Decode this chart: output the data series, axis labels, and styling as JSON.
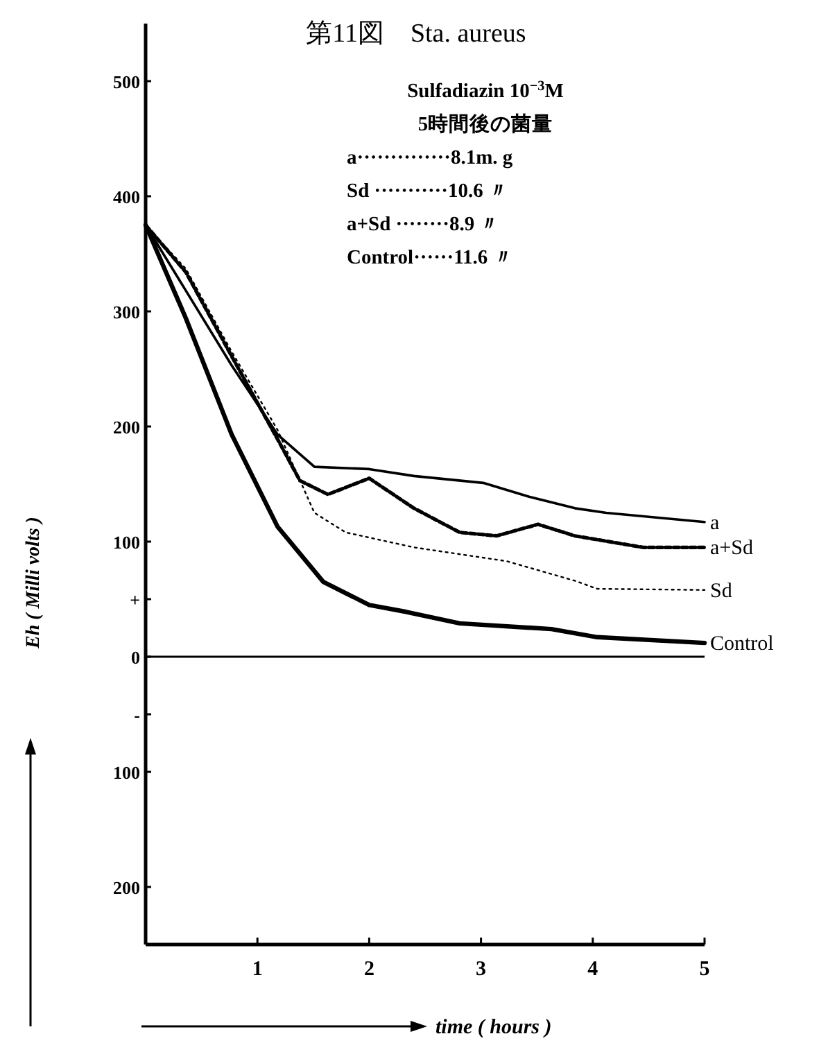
{
  "chart_data": {
    "type": "line",
    "title": "第11図　Sta. aureus",
    "xlabel": "time ( hours )",
    "ylabel": "Eh ( Milli volts )",
    "annotations": [
      "Sulfadiazin 10$^{−3}$M",
      "5時間後の菌量",
      "a··············8.1m. g",
      "Sd ···········10.6 〃",
      "a+Sd ········8.9 〃",
      "Control······11.6 〃"
    ],
    "xlim": [
      0,
      5
    ],
    "xticks": [
      1,
      2,
      3,
      4,
      5
    ],
    "ylim": [
      -250,
      550
    ],
    "yticks": [
      500,
      400,
      300,
      200,
      100,
      {
        "value": 50,
        "label": "+"
      },
      0,
      {
        "value": -50,
        "label": "-"
      },
      {
        "value": -100,
        "label": "100"
      },
      {
        "value": -200,
        "label": "200"
      }
    ],
    "ref_lines": [
      {
        "axis": "y",
        "value": 0
      }
    ],
    "grid": false,
    "series": [
      {
        "name": "a",
        "color": "#000000",
        "line_style": "solid",
        "x": [
          0,
          0.36,
          0.77,
          1.18,
          1.51,
          2.0,
          2.4,
          3.02,
          3.43,
          3.84,
          4.12,
          5
        ],
        "values": [
          375,
          318,
          253,
          193,
          165,
          163,
          157,
          151,
          139,
          129,
          125,
          117
        ]
      },
      {
        "name": "a+Sd",
        "color": "#000000",
        "line_style": "dashed",
        "x": [
          0,
          0.36,
          0.77,
          1.18,
          1.38,
          1.63,
          2.0,
          2.4,
          2.81,
          3.14,
          3.51,
          3.84,
          4.45,
          5
        ],
        "values": [
          375,
          334,
          261,
          189,
          153,
          141,
          155,
          129,
          108,
          105,
          115,
          105,
          95,
          95
        ]
      },
      {
        "name": "Sd",
        "color": "#000000",
        "line_style": "dotted",
        "x": [
          0,
          0.36,
          0.77,
          1.18,
          1.51,
          1.79,
          2.4,
          3.23,
          3.84,
          4.04,
          5
        ],
        "values": [
          375,
          337,
          265,
          197,
          125,
          108,
          95,
          83,
          66,
          59,
          58
        ]
      },
      {
        "name": "Control",
        "color": "#000000",
        "line_style": "solid",
        "x": [
          0,
          0.36,
          0.77,
          1.18,
          1.59,
          2.0,
          2.33,
          2.81,
          3.63,
          4.04,
          5
        ],
        "values": [
          375,
          294,
          193,
          113,
          65,
          45,
          39,
          29,
          24,
          17,
          12
        ]
      }
    ]
  }
}
